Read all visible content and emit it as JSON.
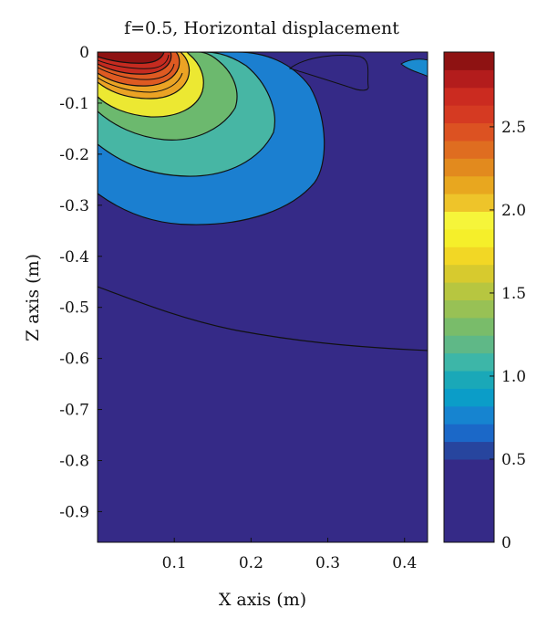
{
  "chart_data": {
    "type": "heatmap",
    "title": "f=0.5, Horizontal displacement",
    "xlabel": "X axis (m)",
    "ylabel": "Z axis (m)",
    "xlim": [
      0,
      0.43
    ],
    "ylim": [
      -0.96,
      0
    ],
    "xticks": [
      "0.1",
      "0.2",
      "0.3",
      "0.4"
    ],
    "xtick_values": [
      0.1,
      0.2,
      0.3,
      0.4
    ],
    "yticks": [
      "0",
      "-0.1",
      "-0.2",
      "-0.3",
      "-0.4",
      "-0.5",
      "-0.6",
      "-0.7",
      "-0.8",
      "-0.9"
    ],
    "ytick_values": [
      0,
      -0.1,
      -0.2,
      -0.3,
      -0.4,
      -0.5,
      -0.6,
      -0.7,
      -0.8,
      -0.9
    ],
    "colorbar": {
      "range": [
        0,
        2.95
      ],
      "ticks": [
        "0",
        "0.5",
        "1.0",
        "1.5",
        "2.0",
        "2.5"
      ],
      "tick_values": [
        0,
        0.5,
        1.0,
        1.5,
        2.0,
        2.5
      ],
      "colors": [
        "#352a87",
        "#27459e",
        "#1b68c8",
        "#1684d0",
        "#0b9dc8",
        "#1aa8b8",
        "#3db6a8",
        "#5fb887",
        "#79bc6a",
        "#98c155",
        "#b7c640",
        "#d7ca2e",
        "#f2d725",
        "#f5ef2a",
        "#f6f53a",
        "#eec42a",
        "#e8a71f",
        "#e28a1e",
        "#df6d20",
        "#dc5222",
        "#d53a22",
        "#cb2b20",
        "#b31c1c",
        "#8e1212"
      ]
    },
    "contour_levels": [
      0.4,
      0.7,
      1.0,
      1.3,
      1.6,
      1.9,
      2.2,
      2.5,
      2.8
    ],
    "field_description": "horizontal displacement peaking near x=0.06 m at the surface, decaying with depth and distance",
    "grid": false,
    "legend": "colorbar right"
  }
}
